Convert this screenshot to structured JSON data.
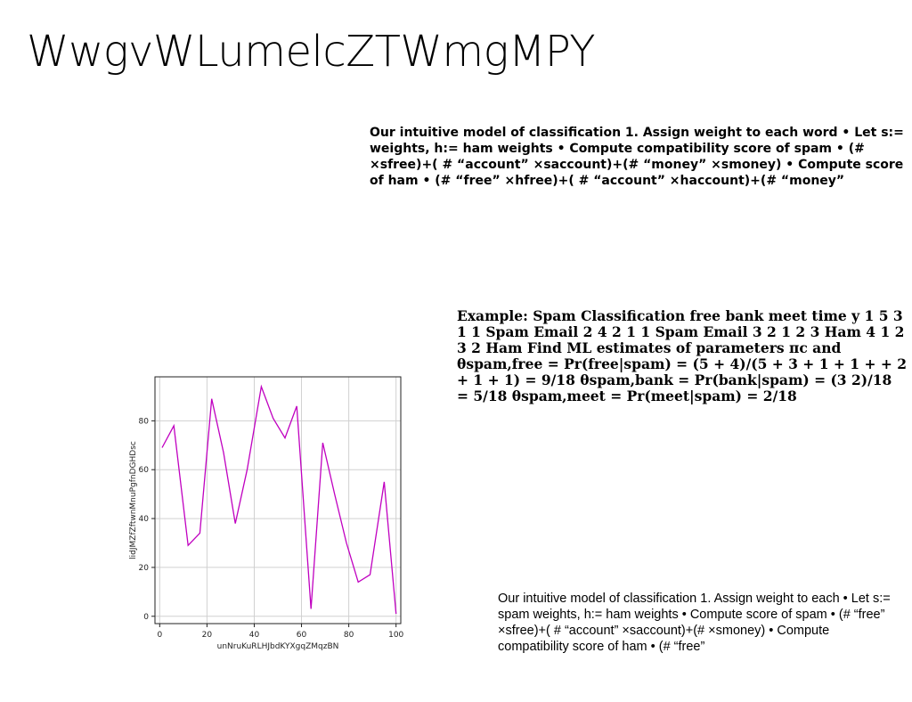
{
  "page": {
    "title": "WwgvWLumelcZTWmgMPY",
    "text_block_1": "Our intuitive model of classification 1. Assign weight to each word • Let s:= weights, h:= ham weights • Compute compatibility score of spam • (# ×sfree)+( # “account” ×saccount)+(# “money” ×smoney) • Compute score of ham • (# “free” ×hfree)+( # “account” ×haccount)+(# “money”",
    "text_block_2": "Example: Spam Classification free bank meet time y 1 5 3 1 1 Spam Email 2 4 2 1 1 Spam Email 3 2 1 2 3 Ham 4 1 2 3 2 Ham Find ML estimates of parameters πc and θspam,free = Pr(free|spam) = (5 + 4)/(5 + 3 + 1 + 1 + + 2 + 1 + 1) = 9/18 θspam,bank = Pr(bank|spam) = (3 2)/18 = 5/18 θspam,meet = Pr(meet|spam) = 2/18",
    "text_block_3": "Our intuitive model of classification 1. Assign weight to each • Let s:= spam weights, h:= ham weights • Compute score of spam • (# “free” ×sfree)+( # “account” ×saccount)+(# ×smoney) • Compute compatibility score of ham • (# “free”"
  },
  "chart_data": {
    "type": "line",
    "xlabel": "unNruKuRLHJbdKYXgqZMqzBN",
    "ylabel": "lidJMZfZftwnMnuPgfnDGHDsc",
    "xlim": [
      -2,
      102
    ],
    "ylim": [
      -3,
      98
    ],
    "xticks": [
      0,
      20,
      40,
      60,
      80,
      100
    ],
    "yticks": [
      0,
      20,
      40,
      60,
      80
    ],
    "grid": true,
    "color": "#c000c0",
    "x": [
      1,
      6,
      12,
      17,
      22,
      27,
      32,
      37,
      43,
      48,
      53,
      58,
      64,
      69,
      74,
      79,
      84,
      89,
      95,
      100
    ],
    "y": [
      69,
      78,
      29,
      34,
      89,
      67,
      38,
      60,
      94,
      81,
      73,
      86,
      3,
      71,
      50,
      30,
      14,
      17,
      55,
      1
    ]
  }
}
